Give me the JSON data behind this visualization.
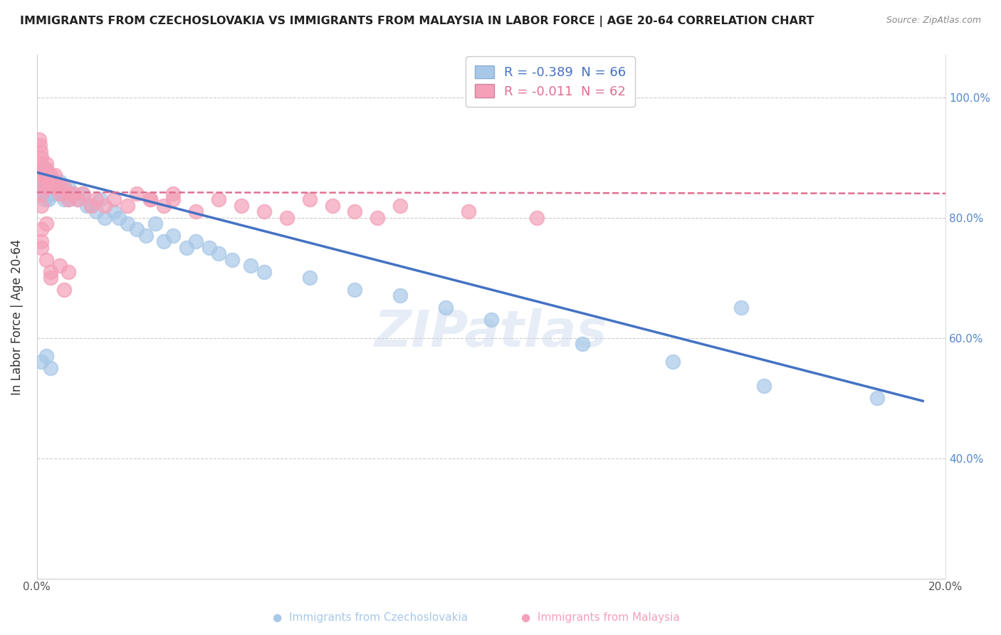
{
  "title": "IMMIGRANTS FROM CZECHOSLOVAKIA VS IMMIGRANTS FROM MALAYSIA IN LABOR FORCE | AGE 20-64 CORRELATION CHART",
  "source": "Source: ZipAtlas.com",
  "ylabel": "In Labor Force | Age 20-64",
  "xlim": [
    0.0,
    0.2
  ],
  "ylim": [
    0.2,
    1.07
  ],
  "watermark": "ZIPatlas",
  "dot_color_blue": "#a8c8e8",
  "dot_color_pink": "#f4a0b8",
  "line_color_blue": "#4472c4",
  "line_color_pink": "#e07090",
  "background_color": "#ffffff",
  "grid_color": "#cccccc",
  "legend_color1": "#a8c8e8",
  "legend_color2": "#f4a0b8",
  "legend_r1": "R = -0.389  N = 66",
  "legend_r2": "R = -0.011  N = 62",
  "blue_dots_x": [
    0.0008,
    0.0009,
    0.001,
    0.0011,
    0.0012,
    0.0013,
    0.0015,
    0.0016,
    0.0017,
    0.0018,
    0.002,
    0.002,
    0.002,
    0.0022,
    0.0023,
    0.0025,
    0.003,
    0.003,
    0.003,
    0.003,
    0.0035,
    0.004,
    0.004,
    0.0045,
    0.005,
    0.005,
    0.006,
    0.006,
    0.007,
    0.007,
    0.008,
    0.009,
    0.01,
    0.011,
    0.012,
    0.013,
    0.014,
    0.015,
    0.017,
    0.018,
    0.02,
    0.022,
    0.024,
    0.026,
    0.028,
    0.03,
    0.033,
    0.035,
    0.038,
    0.04,
    0.043,
    0.047,
    0.05,
    0.06,
    0.07,
    0.08,
    0.09,
    0.1,
    0.12,
    0.14,
    0.16,
    0.001,
    0.002,
    0.003,
    0.155,
    0.185
  ],
  "blue_dots_y": [
    0.87,
    0.86,
    0.88,
    0.85,
    0.87,
    0.84,
    0.86,
    0.85,
    0.87,
    0.83,
    0.88,
    0.86,
    0.84,
    0.85,
    0.87,
    0.83,
    0.86,
    0.85,
    0.84,
    0.87,
    0.84,
    0.86,
    0.84,
    0.85,
    0.86,
    0.84,
    0.85,
    0.83,
    0.85,
    0.83,
    0.84,
    0.83,
    0.84,
    0.82,
    0.82,
    0.81,
    0.83,
    0.8,
    0.81,
    0.8,
    0.79,
    0.78,
    0.77,
    0.79,
    0.76,
    0.77,
    0.75,
    0.76,
    0.75,
    0.74,
    0.73,
    0.72,
    0.71,
    0.7,
    0.68,
    0.67,
    0.65,
    0.63,
    0.59,
    0.56,
    0.52,
    0.56,
    0.57,
    0.55,
    0.65,
    0.5
  ],
  "pink_dots_x": [
    0.0005,
    0.0007,
    0.0008,
    0.001,
    0.001,
    0.001,
    0.0012,
    0.0015,
    0.0017,
    0.002,
    0.002,
    0.002,
    0.0025,
    0.003,
    0.003,
    0.004,
    0.004,
    0.005,
    0.005,
    0.006,
    0.007,
    0.007,
    0.008,
    0.009,
    0.01,
    0.012,
    0.013,
    0.015,
    0.017,
    0.02,
    0.022,
    0.025,
    0.028,
    0.03,
    0.035,
    0.04,
    0.045,
    0.05,
    0.055,
    0.06,
    0.065,
    0.07,
    0.075,
    0.08,
    0.095,
    0.11,
    0.001,
    0.001,
    0.001,
    0.002,
    0.002,
    0.003,
    0.003,
    0.005,
    0.006,
    0.007,
    0.025,
    0.03,
    0.001,
    0.001,
    0.001,
    0.002
  ],
  "pink_dots_y": [
    0.93,
    0.92,
    0.91,
    0.9,
    0.89,
    0.88,
    0.87,
    0.88,
    0.87,
    0.89,
    0.88,
    0.87,
    0.86,
    0.87,
    0.86,
    0.85,
    0.87,
    0.85,
    0.84,
    0.85,
    0.84,
    0.83,
    0.84,
    0.83,
    0.84,
    0.82,
    0.83,
    0.82,
    0.83,
    0.82,
    0.84,
    0.83,
    0.82,
    0.84,
    0.81,
    0.83,
    0.82,
    0.81,
    0.8,
    0.83,
    0.82,
    0.81,
    0.8,
    0.82,
    0.81,
    0.8,
    0.78,
    0.76,
    0.75,
    0.79,
    0.73,
    0.71,
    0.7,
    0.72,
    0.68,
    0.71,
    0.83,
    0.83,
    0.86,
    0.84,
    0.82,
    0.85
  ],
  "blue_line_x": [
    0.0,
    0.195
  ],
  "blue_line_y": [
    0.875,
    0.495
  ],
  "pink_line_x": [
    0.0,
    0.2
  ],
  "pink_line_y": [
    0.842,
    0.84
  ],
  "bottom_label1": "Immigrants from Czechoslovakia",
  "bottom_label2": "Immigrants from Malaysia"
}
